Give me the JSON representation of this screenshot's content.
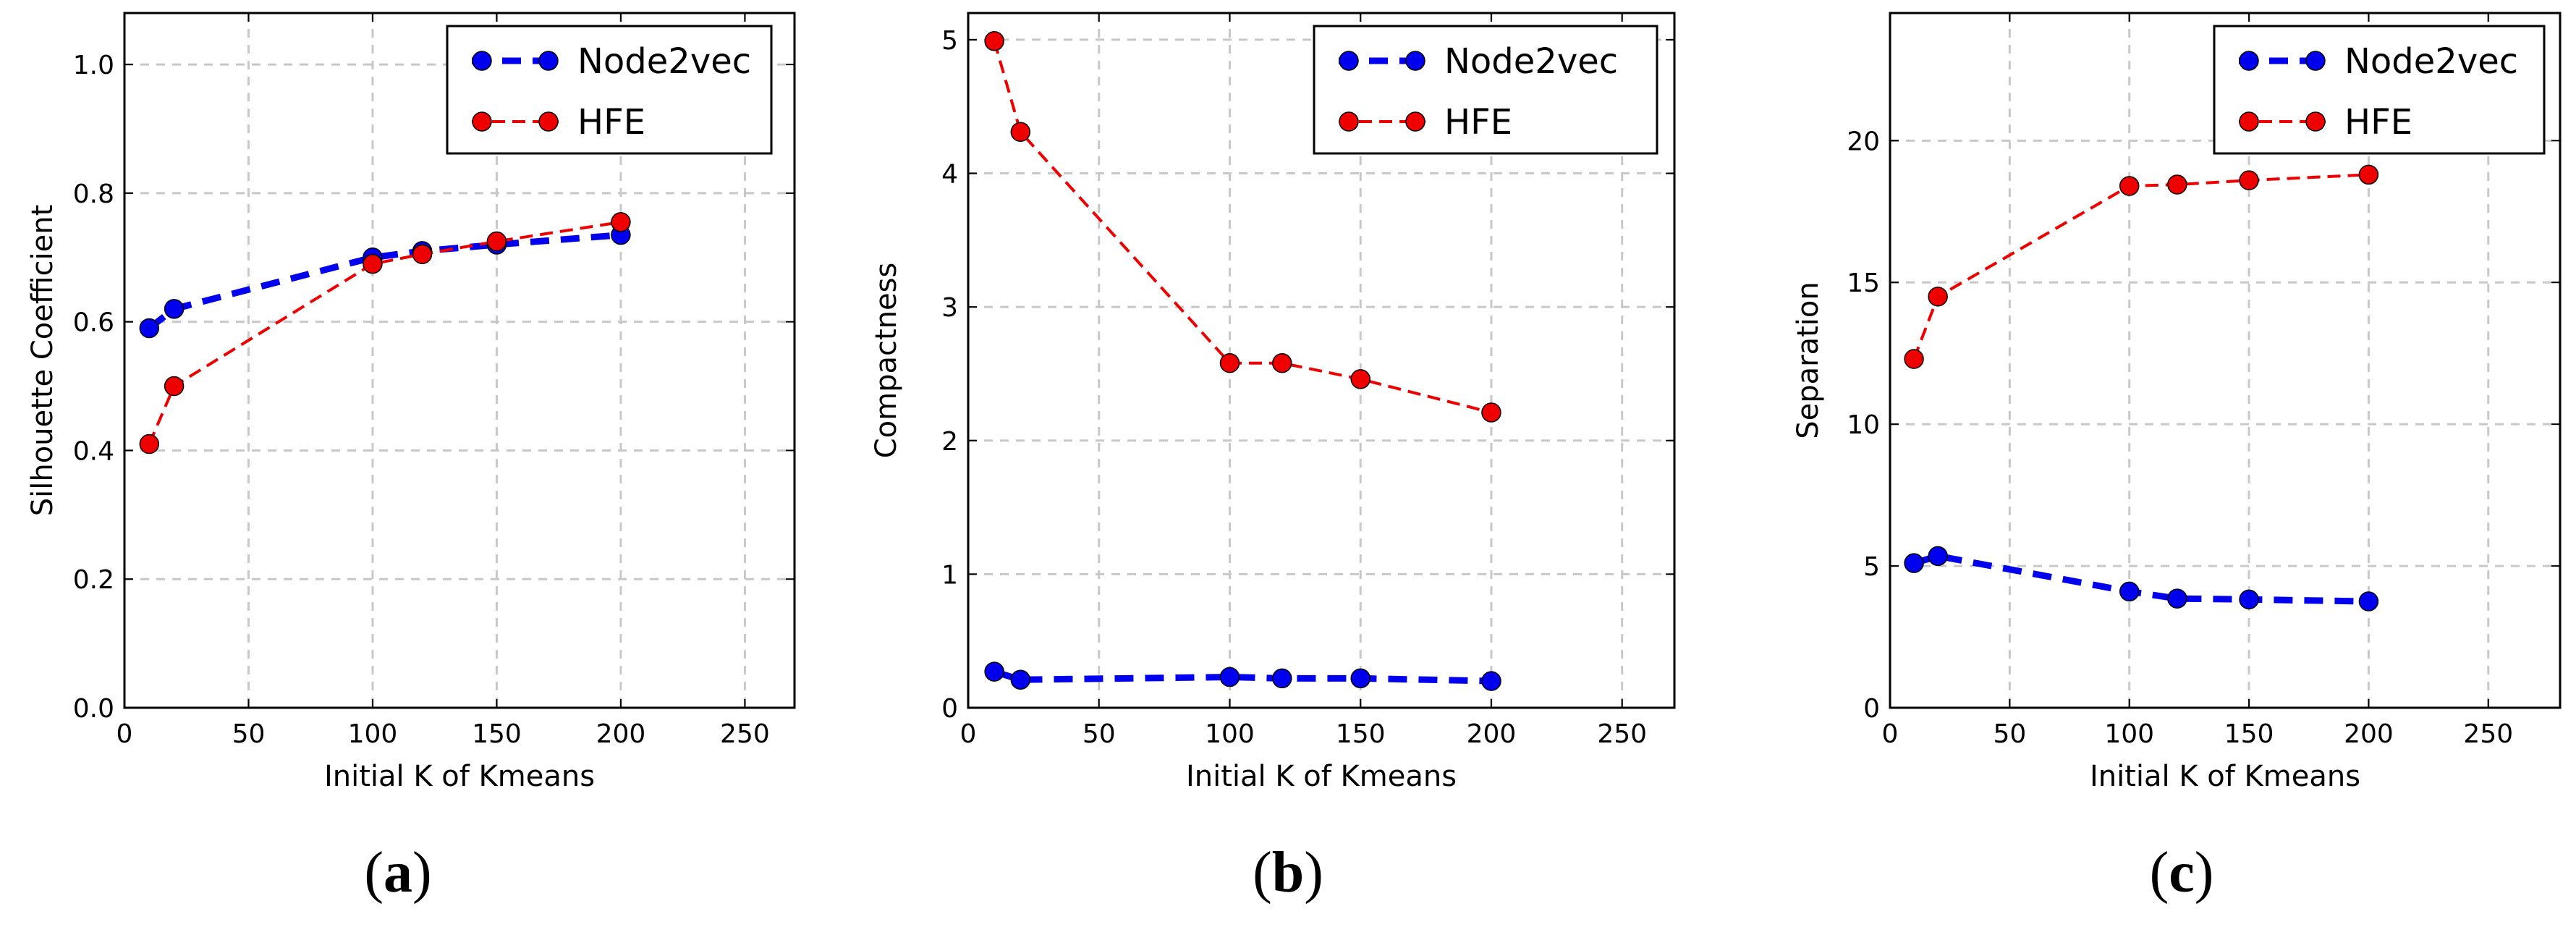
{
  "colors": {
    "node2vec": "#0000ee",
    "hfe": "#ee0000",
    "grid": "#c8c8c8",
    "frame": "#000000"
  },
  "chart_data": [
    {
      "type": "line",
      "panel": "a",
      "xlabel": "Initial K of Kmeans",
      "ylabel": "Silhouette Coefficient",
      "xlim": [
        0,
        270
      ],
      "ylim": [
        0.0,
        1.08
      ],
      "xticks": [
        0,
        50,
        100,
        150,
        200,
        250
      ],
      "xtick_labels": [
        "0",
        "50",
        "100",
        "150",
        "200",
        "250"
      ],
      "yticks": [
        0.0,
        0.2,
        0.4,
        0.6,
        0.8,
        1.0
      ],
      "ytick_labels": [
        "0.0",
        "0.2",
        "0.4",
        "0.6",
        "0.8",
        "1.0"
      ],
      "grid": true,
      "legend_position": "top-right",
      "series": [
        {
          "name": "Node2vec",
          "style": "thick-dashed",
          "x": [
            10,
            20,
            100,
            120,
            150,
            200
          ],
          "y": [
            0.59,
            0.62,
            0.7,
            0.71,
            0.72,
            0.735
          ]
        },
        {
          "name": "HFE",
          "style": "thin-dashed",
          "x": [
            10,
            20,
            100,
            120,
            150,
            200
          ],
          "y": [
            0.41,
            0.5,
            0.69,
            0.705,
            0.725,
            0.755
          ]
        }
      ]
    },
    {
      "type": "line",
      "panel": "b",
      "xlabel": "Initial K of Kmeans",
      "ylabel": "Compactness",
      "xlim": [
        0,
        270
      ],
      "ylim": [
        0,
        5.2
      ],
      "xticks": [
        0,
        50,
        100,
        150,
        200,
        250
      ],
      "xtick_labels": [
        "0",
        "50",
        "100",
        "150",
        "200",
        "250"
      ],
      "yticks": [
        0,
        1,
        2,
        3,
        4,
        5
      ],
      "ytick_labels": [
        "0",
        "1",
        "2",
        "3",
        "4",
        "5"
      ],
      "grid": true,
      "legend_position": "top-right",
      "series": [
        {
          "name": "Node2vec",
          "style": "thick-dashed",
          "x": [
            10,
            20,
            100,
            120,
            150,
            200
          ],
          "y": [
            0.27,
            0.21,
            0.23,
            0.22,
            0.22,
            0.2
          ]
        },
        {
          "name": "HFE",
          "style": "thin-dashed",
          "x": [
            10,
            20,
            100,
            120,
            150,
            200
          ],
          "y": [
            4.99,
            4.31,
            2.58,
            2.58,
            2.46,
            2.21
          ]
        }
      ]
    },
    {
      "type": "line",
      "panel": "c",
      "xlabel": "Initial K of Kmeans",
      "ylabel": "Separation",
      "xlim": [
        0,
        280
      ],
      "ylim": [
        0,
        24.5
      ],
      "xticks": [
        0,
        50,
        100,
        150,
        200,
        250
      ],
      "xtick_labels": [
        "0",
        "50",
        "100",
        "150",
        "200",
        "250"
      ],
      "yticks": [
        0,
        5,
        10,
        15,
        20
      ],
      "ytick_labels": [
        "0",
        "5",
        "10",
        "15",
        "20"
      ],
      "grid": true,
      "legend_position": "top-right",
      "series": [
        {
          "name": "Node2vec",
          "style": "thick-dashed",
          "x": [
            10,
            20,
            100,
            120,
            150,
            200
          ],
          "y": [
            5.1,
            5.35,
            4.1,
            3.85,
            3.82,
            3.75
          ]
        },
        {
          "name": "HFE",
          "style": "thin-dashed",
          "x": [
            10,
            20,
            100,
            120,
            150,
            200
          ],
          "y": [
            12.3,
            14.5,
            18.4,
            18.45,
            18.6,
            18.8
          ]
        }
      ]
    }
  ],
  "panel_labels": [
    {
      "open": "(",
      "letter": "a",
      "close": ")"
    },
    {
      "open": "(",
      "letter": "b",
      "close": ")"
    },
    {
      "open": "(",
      "letter": "c",
      "close": ")"
    }
  ]
}
